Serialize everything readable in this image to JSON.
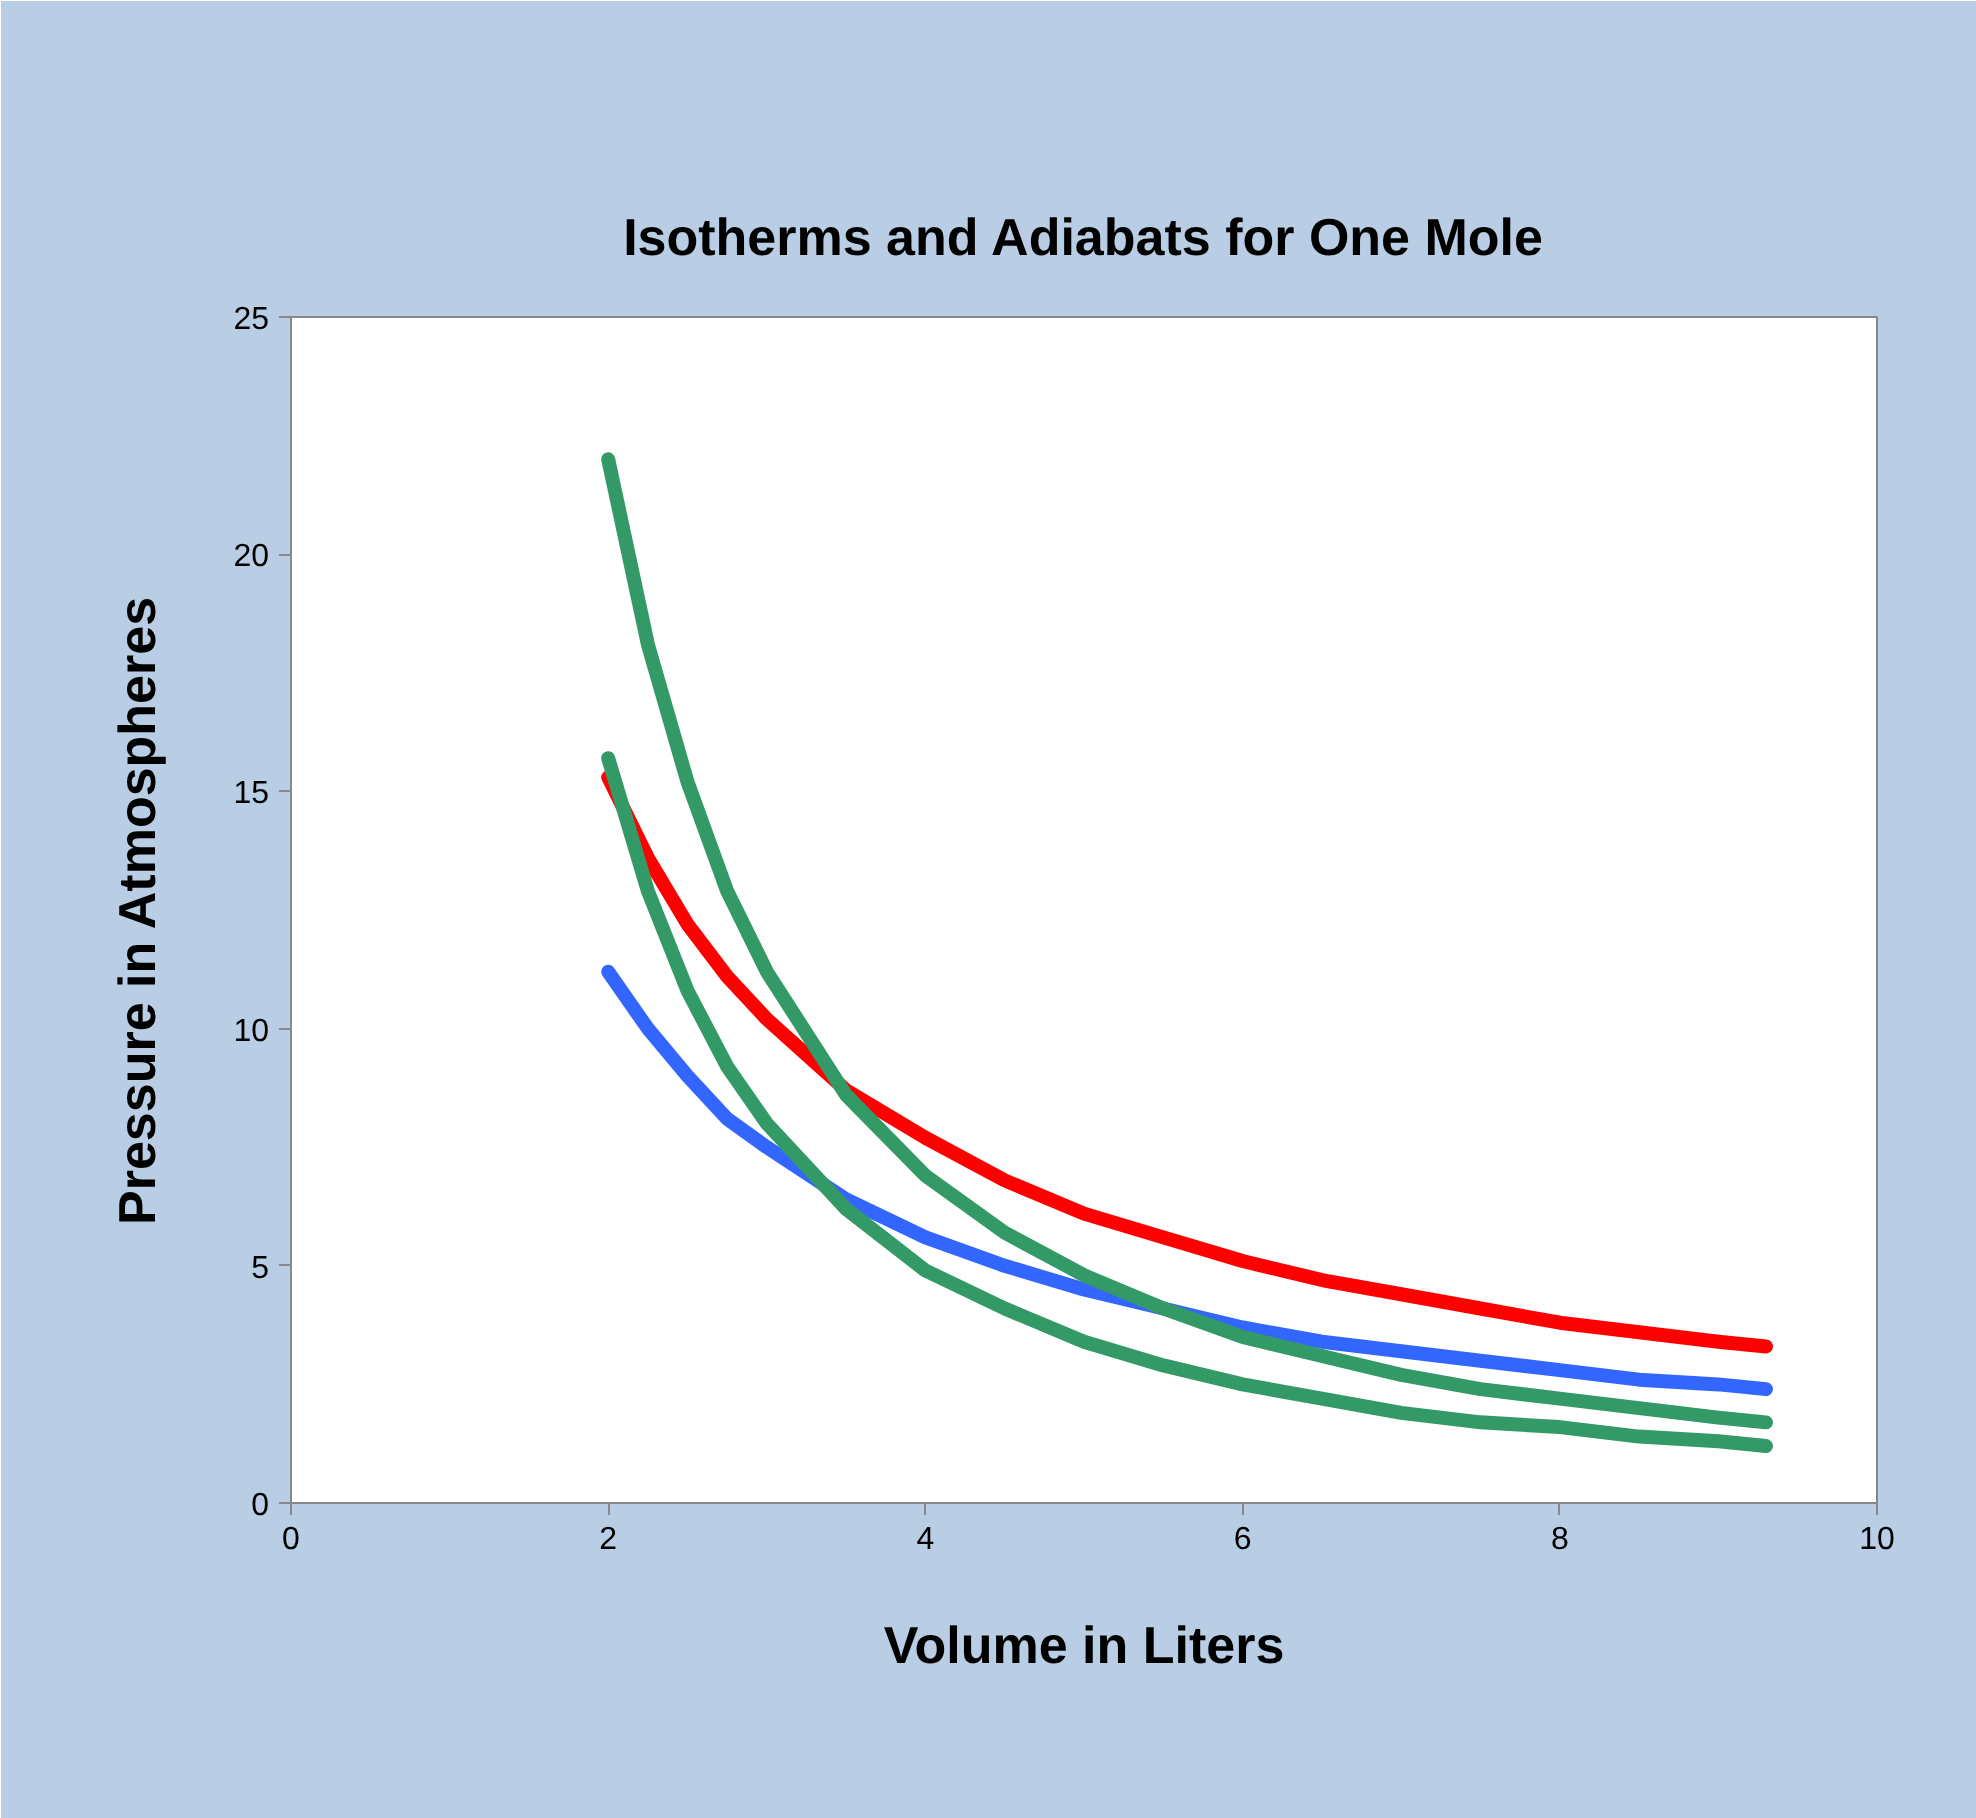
{
  "chart_data": {
    "type": "line",
    "title": "Isotherms and Adiabats for One Mole",
    "xlabel": "Volume in Liters",
    "ylabel": "Pressure in Atmospheres",
    "x": [
      2,
      2.25,
      2.5,
      2.75,
      3,
      3.5,
      4,
      4.5,
      5,
      5.5,
      6,
      6.5,
      7,
      7.5,
      8,
      8.5,
      9,
      9.3
    ],
    "series": [
      {
        "color": "#ff0000",
        "values": [
          15.3,
          13.6,
          12.2,
          11.1,
          10.2,
          8.7,
          7.7,
          6.8,
          6.1,
          5.6,
          5.1,
          4.7,
          4.4,
          4.1,
          3.8,
          3.6,
          3.4,
          3.3
        ]
      },
      {
        "color": "#3366ff",
        "values": [
          11.2,
          10.0,
          9.0,
          8.1,
          7.5,
          6.4,
          5.6,
          5.0,
          4.5,
          4.1,
          3.7,
          3.4,
          3.2,
          3.0,
          2.8,
          2.6,
          2.5,
          2.4
        ]
      },
      {
        "color": "#339966",
        "values": [
          22,
          18.1,
          15.2,
          12.9,
          11.2,
          8.6,
          6.9,
          5.7,
          4.8,
          4.1,
          3.5,
          3.1,
          2.7,
          2.4,
          2.2,
          2.0,
          1.8,
          1.7
        ]
      },
      {
        "color": "#339966",
        "values": [
          15.7,
          12.9,
          10.8,
          9.2,
          8.0,
          6.2,
          4.9,
          4.1,
          3.4,
          2.9,
          2.5,
          2.2,
          1.9,
          1.7,
          1.6,
          1.4,
          1.3,
          1.2
        ]
      }
    ],
    "xlim": [
      0,
      10
    ],
    "xticks": [
      0,
      2,
      4,
      6,
      8,
      10
    ],
    "ylim": [
      0,
      25
    ],
    "yticks": [
      0,
      5,
      10,
      15,
      20,
      25
    ],
    "marker": "none",
    "line_style": "solid"
  }
}
